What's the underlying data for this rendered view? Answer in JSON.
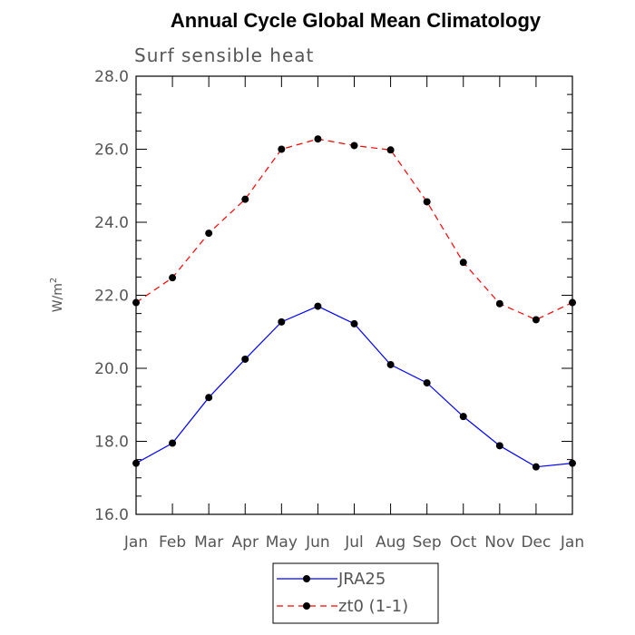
{
  "chart_data": {
    "type": "line",
    "title": "Annual Cycle Global Mean Climatology",
    "subtitle": "Surf sensible heat",
    "ylabel": "W/m",
    "ylabel_superscript": "2",
    "categories": [
      "Jan",
      "Feb",
      "Mar",
      "Apr",
      "May",
      "Jun",
      "Jul",
      "Aug",
      "Sep",
      "Oct",
      "Nov",
      "Dec",
      "Jan"
    ],
    "ylim": [
      16.0,
      28.0
    ],
    "yticks": [
      "16.0",
      "18.0",
      "20.0",
      "22.0",
      "24.0",
      "26.0",
      "28.0"
    ],
    "grid": false,
    "legend_position": "bottom-center",
    "series": [
      {
        "name": "JRA25",
        "color": "#0000ff",
        "dash": "solid",
        "marker": "circle",
        "values": [
          17.4,
          17.95,
          19.2,
          20.25,
          21.27,
          21.7,
          21.22,
          20.1,
          19.6,
          18.68,
          17.88,
          17.3,
          17.4
        ]
      },
      {
        "name": "zt0 (1-1)",
        "color": "#ff0000",
        "dash": "dashed",
        "marker": "circle",
        "values": [
          21.8,
          22.48,
          23.7,
          24.63,
          26.0,
          26.28,
          26.1,
          25.98,
          24.56,
          22.9,
          21.77,
          21.33,
          21.8
        ]
      }
    ]
  }
}
